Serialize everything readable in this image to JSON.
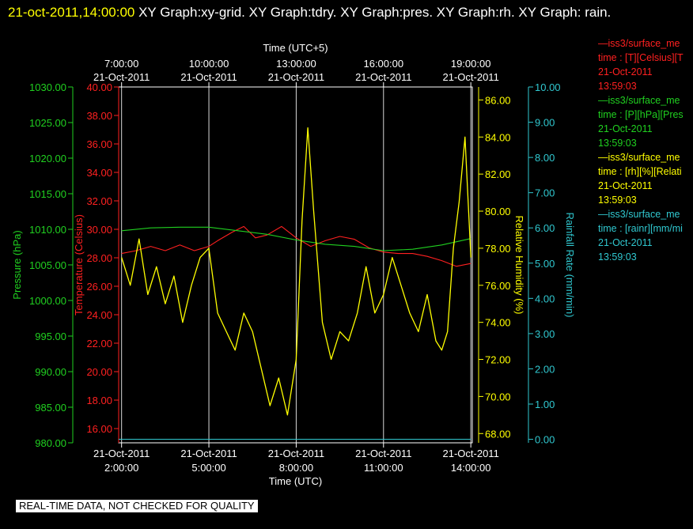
{
  "title": {
    "timestamp": "21-oct-2011,14:00:00",
    "text": "  XY Graph:xy-grid.  XY Graph:tdry.  XY Graph:pres.  XY Graph:rh.  XY Graph: rain."
  },
  "footer": "REAL-TIME DATA, NOT CHECKED FOR QUALITY",
  "colors": {
    "temperature": "#ff2020",
    "pressure": "#20d020",
    "humidity": "#ffff00",
    "rainfall": "#30c8d0",
    "grid": "#ffffff"
  },
  "legend": [
    {
      "line1": "—iss3/surface_me",
      "line2": "time : [T][Celsius][T",
      "line3": "21-Oct-2011",
      "line4": "13:59:03",
      "color": "#ff2020"
    },
    {
      "line1": "—iss3/surface_me",
      "line2": "time : [P][hPa][Pres",
      "line3": "21-Oct-2011",
      "line4": "13:59:03",
      "color": "#20d020"
    },
    {
      "line1": "—iss3/surface_me",
      "line2": "time : [rh][%][Relati",
      "line3": "21-Oct-2011",
      "line4": "13:59:03",
      "color": "#ffff00"
    },
    {
      "line1": "—iss3/surface_me",
      "line2": "time : [rainr][mm/mi",
      "line3": "21-Oct-2011",
      "line4": "13:59:03",
      "color": "#30c8d0"
    }
  ],
  "chart_data": {
    "type": "line",
    "x_label_bottom": "Time (UTC)",
    "x_label_top": "Time (UTC+5)",
    "x_range_hours_utc": [
      0,
      14
    ],
    "x_ticks_bottom": [
      {
        "hour": 2,
        "date": "21-Oct-2011",
        "time": "2:00:00"
      },
      {
        "hour": 5,
        "date": "21-Oct-2011",
        "time": "5:00:00"
      },
      {
        "hour": 8,
        "date": "21-Oct-2011",
        "time": "8:00:00"
      },
      {
        "hour": 11,
        "date": "21-Oct-2011",
        "time": "11:00:00"
      },
      {
        "hour": 14,
        "date": "21-Oct-2011",
        "time": "14:00:00"
      }
    ],
    "x_ticks_top": [
      {
        "hour": 2,
        "date": "21-Oct-2011",
        "time": "7:00:00"
      },
      {
        "hour": 5,
        "date": "21-Oct-2011",
        "time": "10:00:00"
      },
      {
        "hour": 8,
        "date": "21-Oct-2011",
        "time": "13:00:00"
      },
      {
        "hour": 11,
        "date": "21-Oct-2011",
        "time": "16:00:00"
      },
      {
        "hour": 14,
        "date": "21-Oct-2011",
        "time": "19:00:00"
      }
    ],
    "axes": {
      "pressure": {
        "label": "Pressure (hPa)",
        "range": [
          980,
          1030
        ],
        "ticks": [
          "980.00",
          "985.00",
          "990.00",
          "995.00",
          "1000.00",
          "1005.00",
          "1010.00",
          "1015.00",
          "1020.00",
          "1025.00",
          "1030.00"
        ]
      },
      "temperature": {
        "label": "Temperature (Celsius)",
        "range": [
          15,
          40
        ],
        "ticks": [
          "16.00",
          "18.00",
          "20.00",
          "22.00",
          "24.00",
          "26.00",
          "28.00",
          "30.00",
          "32.00",
          "34.00",
          "36.00",
          "38.00",
          "40.00"
        ]
      },
      "humidity": {
        "label": "Relative Humidity (%)",
        "range": [
          67.5,
          86.7
        ],
        "ticks": [
          "68.00",
          "70.00",
          "72.00",
          "74.00",
          "76.00",
          "78.00",
          "80.00",
          "82.00",
          "84.00",
          "86.00"
        ]
      },
      "rainfall": {
        "label": "Rainfall Rate (mm/min)",
        "range": [
          -0.1,
          10
        ],
        "ticks": [
          "0.00",
          "1.00",
          "2.00",
          "3.00",
          "4.00",
          "5.00",
          "6.00",
          "7.00",
          "8.00",
          "9.00",
          "10.00"
        ]
      }
    },
    "series": [
      {
        "key": "temperature",
        "axis": "temperature",
        "x": [
          2.0,
          2.5,
          3.0,
          3.5,
          4.0,
          4.5,
          5.0,
          5.3,
          5.8,
          6.2,
          6.6,
          7.0,
          7.5,
          8.0,
          8.5,
          9.0,
          9.5,
          10.0,
          10.5,
          11.0,
          11.5,
          12.0,
          12.5,
          13.0,
          13.5,
          14.0
        ],
        "y": [
          28.3,
          28.5,
          28.8,
          28.5,
          28.9,
          28.5,
          28.8,
          29.2,
          29.8,
          30.2,
          29.4,
          29.6,
          30.2,
          29.4,
          28.8,
          29.2,
          29.5,
          29.3,
          28.7,
          28.4,
          28.3,
          28.3,
          28.1,
          27.8,
          27.4,
          27.6
        ]
      },
      {
        "key": "pressure",
        "axis": "pressure",
        "x": [
          2,
          3,
          4,
          5,
          6,
          7,
          8,
          9,
          10,
          11,
          12,
          13,
          14
        ],
        "y": [
          1009.8,
          1010.2,
          1010.3,
          1010.3,
          1009.8,
          1009.3,
          1008.5,
          1007.9,
          1007.6,
          1007.0,
          1007.2,
          1007.8,
          1008.7
        ]
      },
      {
        "key": "humidity",
        "axis": "humidity",
        "x": [
          2.0,
          2.3,
          2.6,
          2.9,
          3.2,
          3.5,
          3.8,
          4.1,
          4.4,
          4.7,
          5.0,
          5.3,
          5.6,
          5.9,
          6.2,
          6.5,
          6.8,
          7.1,
          7.4,
          7.7,
          8.0,
          8.2,
          8.4,
          8.6,
          8.9,
          9.2,
          9.5,
          9.8,
          10.1,
          10.4,
          10.7,
          11.0,
          11.3,
          11.6,
          11.9,
          12.2,
          12.5,
          12.8,
          13.0,
          13.2,
          13.4,
          13.6,
          13.8,
          14.0
        ],
        "y": [
          77.5,
          76.0,
          78.5,
          75.5,
          77.0,
          75.0,
          76.5,
          74.0,
          76.0,
          77.5,
          78.0,
          74.5,
          73.5,
          72.5,
          74.5,
          73.5,
          71.5,
          69.5,
          71.0,
          69.0,
          72.0,
          79.5,
          84.5,
          80.0,
          74.0,
          72.0,
          73.5,
          73.0,
          74.5,
          77.0,
          74.5,
          75.5,
          77.5,
          76.0,
          74.5,
          73.5,
          75.5,
          73.0,
          72.5,
          73.5,
          78.0,
          80.5,
          84.0,
          77.5
        ]
      },
      {
        "key": "rainfall",
        "axis": "rainfall",
        "x": [
          0,
          14
        ],
        "y": [
          0.0,
          0.0
        ]
      }
    ]
  }
}
